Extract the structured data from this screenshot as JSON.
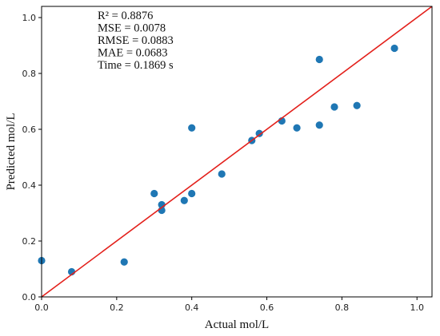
{
  "chart_data": {
    "type": "scatter",
    "xlabel": "Actual mol/L",
    "ylabel": "Predicted mol/L",
    "xlim": [
      0.0,
      1.04
    ],
    "ylim": [
      0.0,
      1.04
    ],
    "xticks": [
      "0.0",
      "0.2",
      "0.4",
      "0.6",
      "0.8",
      "1.0"
    ],
    "yticks": [
      "0.0",
      "0.2",
      "0.4",
      "0.6",
      "0.8",
      "1.0"
    ],
    "grid": false,
    "stats": [
      "R² = 0.8876",
      "MSE = 0.0078",
      "RMSE = 0.0883",
      "MAE = 0.0683",
      "Time = 0.1869 s"
    ],
    "reference_line": {
      "x": [
        0.0,
        1.04
      ],
      "y": [
        0.0,
        1.04
      ],
      "color": "#e3201b"
    },
    "point_color": "#1f77b4",
    "points": [
      {
        "x": 0.0,
        "y": 0.13
      },
      {
        "x": 0.08,
        "y": 0.09
      },
      {
        "x": 0.22,
        "y": 0.125
      },
      {
        "x": 0.3,
        "y": 0.37
      },
      {
        "x": 0.32,
        "y": 0.33
      },
      {
        "x": 0.32,
        "y": 0.31
      },
      {
        "x": 0.38,
        "y": 0.345
      },
      {
        "x": 0.4,
        "y": 0.37
      },
      {
        "x": 0.4,
        "y": 0.605
      },
      {
        "x": 0.48,
        "y": 0.44
      },
      {
        "x": 0.56,
        "y": 0.56
      },
      {
        "x": 0.58,
        "y": 0.585
      },
      {
        "x": 0.64,
        "y": 0.63
      },
      {
        "x": 0.68,
        "y": 0.605
      },
      {
        "x": 0.74,
        "y": 0.85
      },
      {
        "x": 0.74,
        "y": 0.615
      },
      {
        "x": 0.78,
        "y": 0.68
      },
      {
        "x": 0.84,
        "y": 0.685
      },
      {
        "x": 0.94,
        "y": 0.89
      }
    ]
  }
}
